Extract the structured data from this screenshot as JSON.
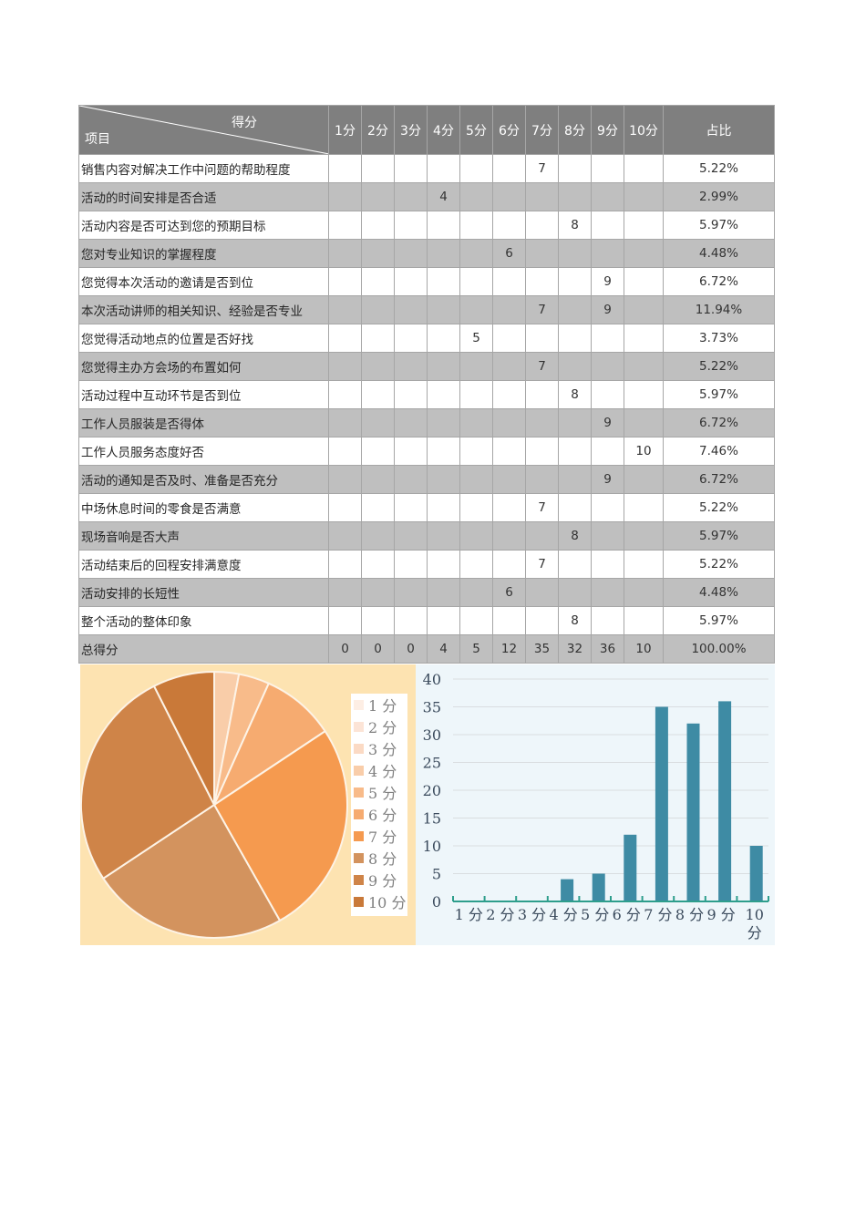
{
  "table": {
    "header": {
      "score_label": "得分",
      "item_label": "项目",
      "score_columns": [
        "1分",
        "2分",
        "3分",
        "4分",
        "5分",
        "6分",
        "7分",
        "8分",
        "9分",
        "10分"
      ],
      "ratio_label": "占比"
    },
    "rows": [
      {
        "item": "销售内容对解决工作中问题的帮助程度",
        "scores": [
          "",
          "",
          "",
          "",
          "",
          "",
          "7",
          "",
          "",
          ""
        ],
        "ratio": "5.22%"
      },
      {
        "item": "活动的时间安排是否合适",
        "scores": [
          "",
          "",
          "",
          "4",
          "",
          "",
          "",
          "",
          "",
          ""
        ],
        "ratio": "2.99%"
      },
      {
        "item": "活动内容是否可达到您的预期目标",
        "scores": [
          "",
          "",
          "",
          "",
          "",
          "",
          "",
          "8",
          "",
          ""
        ],
        "ratio": "5.97%"
      },
      {
        "item": "您对专业知识的掌握程度",
        "scores": [
          "",
          "",
          "",
          "",
          "",
          "6",
          "",
          "",
          "",
          ""
        ],
        "ratio": "4.48%"
      },
      {
        "item": "您觉得本次活动的邀请是否到位",
        "scores": [
          "",
          "",
          "",
          "",
          "",
          "",
          "",
          "",
          "9",
          ""
        ],
        "ratio": "6.72%"
      },
      {
        "item": "本次活动讲师的相关知识、经验是否专业",
        "scores": [
          "",
          "",
          "",
          "",
          "",
          "",
          "7",
          "",
          "9",
          ""
        ],
        "ratio": "11.94%"
      },
      {
        "item": "您觉得活动地点的位置是否好找",
        "scores": [
          "",
          "",
          "",
          "",
          "5",
          "",
          "",
          "",
          "",
          ""
        ],
        "ratio": "3.73%"
      },
      {
        "item": "您觉得主办方会场的布置如何",
        "scores": [
          "",
          "",
          "",
          "",
          "",
          "",
          "7",
          "",
          "",
          ""
        ],
        "ratio": "5.22%"
      },
      {
        "item": "活动过程中互动环节是否到位",
        "scores": [
          "",
          "",
          "",
          "",
          "",
          "",
          "",
          "8",
          "",
          ""
        ],
        "ratio": "5.97%"
      },
      {
        "item": "工作人员服装是否得体",
        "scores": [
          "",
          "",
          "",
          "",
          "",
          "",
          "",
          "",
          "9",
          ""
        ],
        "ratio": "6.72%"
      },
      {
        "item": "工作人员服务态度好否",
        "scores": [
          "",
          "",
          "",
          "",
          "",
          "",
          "",
          "",
          "",
          "10"
        ],
        "ratio": "7.46%"
      },
      {
        "item": "活动的通知是否及时、准备是否充分",
        "scores": [
          "",
          "",
          "",
          "",
          "",
          "",
          "",
          "",
          "9",
          ""
        ],
        "ratio": "6.72%"
      },
      {
        "item": "中场休息时间的零食是否满意",
        "scores": [
          "",
          "",
          "",
          "",
          "",
          "",
          "7",
          "",
          "",
          ""
        ],
        "ratio": "5.22%"
      },
      {
        "item": "现场音响是否大声",
        "scores": [
          "",
          "",
          "",
          "",
          "",
          "",
          "",
          "8",
          "",
          ""
        ],
        "ratio": "5.97%"
      },
      {
        "item": "活动结束后的回程安排满意度",
        "scores": [
          "",
          "",
          "",
          "",
          "",
          "",
          "7",
          "",
          "",
          ""
        ],
        "ratio": "5.22%"
      },
      {
        "item": "活动安排的长短性",
        "scores": [
          "",
          "",
          "",
          "",
          "",
          "6",
          "",
          "",
          "",
          ""
        ],
        "ratio": "4.48%"
      },
      {
        "item": "整个活动的整体印象",
        "scores": [
          "",
          "",
          "",
          "",
          "",
          "",
          "",
          "8",
          "",
          ""
        ],
        "ratio": "5.97%"
      }
    ],
    "total": {
      "label": "总得分",
      "scores": [
        "0",
        "0",
        "0",
        "4",
        "5",
        "12",
        "35",
        "32",
        "36",
        "10"
      ],
      "ratio": "100.00%"
    }
  },
  "colors": {
    "header_bg": "#7f7f7f",
    "stripe_bg": "#bfbfbf",
    "pie_panel_bg": "#fde3b1",
    "bar_panel_bg": "#eef6fa",
    "bar_color": "#3e8ba4",
    "axis_color": "#2e9e8c",
    "pie_slice_colors": [
      "#fdeee4",
      "#fce4d6",
      "#fbdac4",
      "#f9cda9",
      "#f8bb8a",
      "#f6ab70",
      "#f59a4f",
      "#d3935e",
      "#cf8448",
      "#c97939"
    ]
  },
  "chart_data": [
    {
      "type": "pie",
      "title": "",
      "categories": [
        "1 分",
        "2 分",
        "3 分",
        "4 分",
        "5 分",
        "6 分",
        "7 分",
        "8 分",
        "9 分",
        "10 分"
      ],
      "values": [
        0,
        0,
        0,
        4,
        5,
        12,
        35,
        32,
        36,
        10
      ],
      "legend_position": "right",
      "legend": [
        "1 分",
        "2 分",
        "3 分",
        "4 分",
        "5 分",
        "6 分",
        "7 分",
        "8 分",
        "9 分",
        "10 分"
      ]
    },
    {
      "type": "bar",
      "title": "",
      "categories": [
        "1 分",
        "2 分",
        "3 分",
        "4 分",
        "5 分",
        "6 分",
        "7 分",
        "8 分",
        "9 分",
        "10 分"
      ],
      "values": [
        0,
        0,
        0,
        4,
        5,
        12,
        35,
        32,
        36,
        10
      ],
      "xlabel": "",
      "ylabel": "",
      "ylim": [
        0,
        40
      ],
      "yticks": [
        "0",
        "5",
        "10",
        "15",
        "20",
        "25",
        "30",
        "35",
        "40"
      ],
      "grid": true
    }
  ]
}
